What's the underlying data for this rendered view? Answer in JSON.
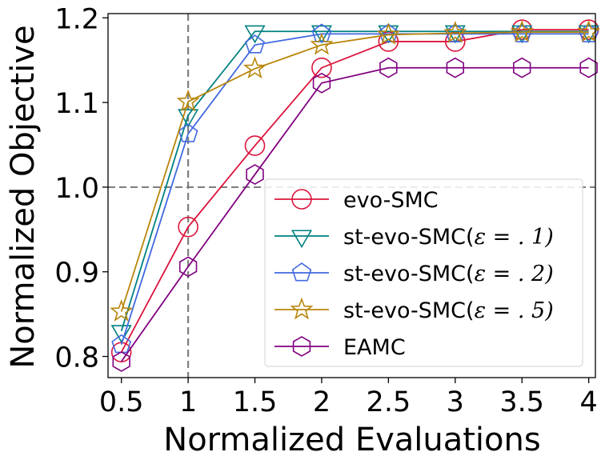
{
  "chart_data": {
    "type": "line",
    "title": "",
    "xlabel": "Normalized Evaluations",
    "ylabel": "Normalized Objective",
    "xlim": [
      0.4,
      4.05
    ],
    "ylim": [
      0.775,
      1.205
    ],
    "x_ticks": [
      0.5,
      1,
      1.5,
      2,
      2.5,
      3,
      3.5,
      4
    ],
    "x_tick_labels": [
      "0.5",
      "1",
      "1.5",
      "2",
      "2.5",
      "3",
      "3.5",
      "4"
    ],
    "y_ticks": [
      0.8,
      0.9,
      1.0,
      1.1,
      1.2
    ],
    "y_tick_labels": [
      "0.8",
      "0.9",
      "1.0",
      "1.1",
      "1.2"
    ],
    "reference_lines": {
      "x": 1,
      "y": 1.0
    },
    "grid": false,
    "legend_position": "bottom-right",
    "x": [
      0.5,
      1,
      1.5,
      2,
      2.5,
      3,
      3.5,
      4
    ],
    "series": [
      {
        "name": "evo-SMC",
        "label_main": "evo-SMC",
        "label_eps": "",
        "color": "#dc143c",
        "marker": "circle",
        "values": [
          0.805,
          0.953,
          1.049,
          1.141,
          1.172,
          1.172,
          1.186,
          1.186
        ]
      },
      {
        "name": "st-evo-SMC(ε = .1)",
        "label_main": "st-evo-SMC(",
        "label_eps": "ε = . 1)",
        "color": "#008080",
        "marker": "triangle-down",
        "values": [
          0.83,
          1.085,
          1.184,
          1.184,
          1.184,
          1.184,
          1.184,
          1.184
        ]
      },
      {
        "name": "st-evo-SMC(ε = .2)",
        "label_main": "st-evo-SMC(",
        "label_eps": "ε = . 2)",
        "color": "#4169e1",
        "marker": "pentagon",
        "values": [
          0.814,
          1.063,
          1.168,
          1.181,
          1.181,
          1.181,
          1.181,
          1.181
        ]
      },
      {
        "name": "st-evo-SMC(ε = .5)",
        "label_main": "st-evo-SMC(",
        "label_eps": "ε = . 5)",
        "color": "#b8860b",
        "marker": "star",
        "values": [
          0.853,
          1.101,
          1.14,
          1.168,
          1.18,
          1.182,
          1.183,
          1.183
        ]
      },
      {
        "name": "EAMC",
        "label_main": "EAMC",
        "label_eps": "",
        "color": "#800080",
        "marker": "hexagon",
        "values": [
          0.794,
          0.906,
          1.015,
          1.123,
          1.141,
          1.141,
          1.141,
          1.141
        ]
      }
    ]
  }
}
